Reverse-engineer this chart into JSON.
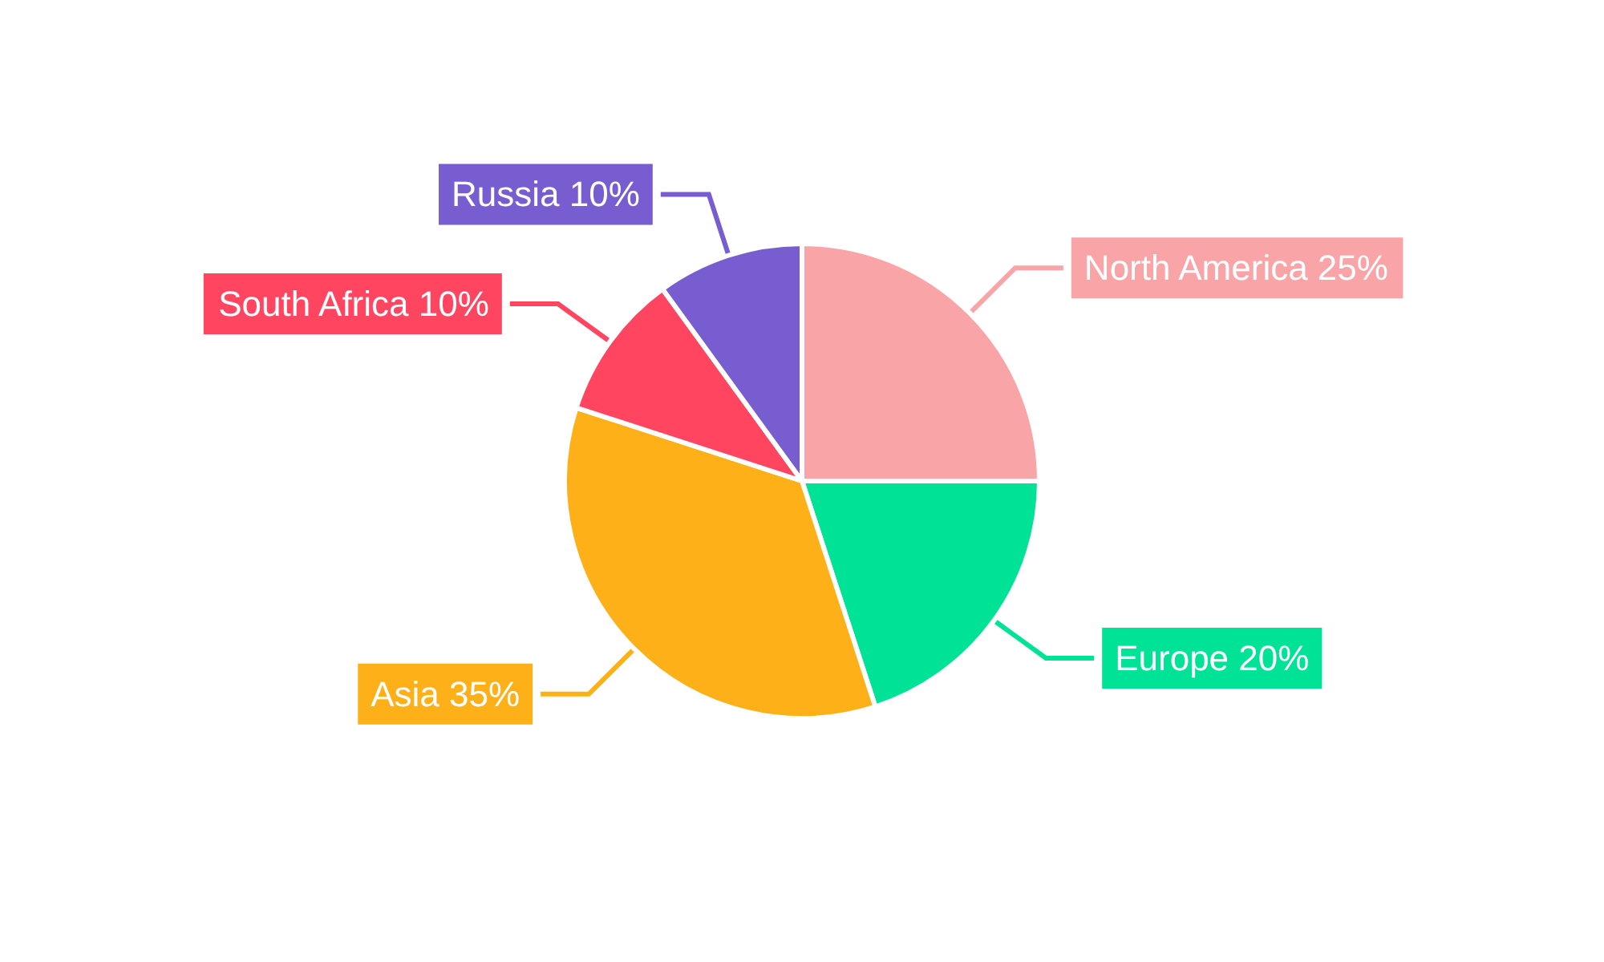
{
  "chart_data": {
    "type": "pie",
    "categories": [
      "North America",
      "Europe",
      "Asia",
      "South Africa",
      "Russia"
    ],
    "values": [
      25,
      20,
      35,
      10,
      10
    ],
    "value_labels": [
      "25%",
      "20%",
      "35%",
      "10%",
      "10%"
    ],
    "colors": [
      "#f9a5a8",
      "#00e396",
      "#feb019",
      "#ff4560",
      "#775dd0"
    ]
  }
}
